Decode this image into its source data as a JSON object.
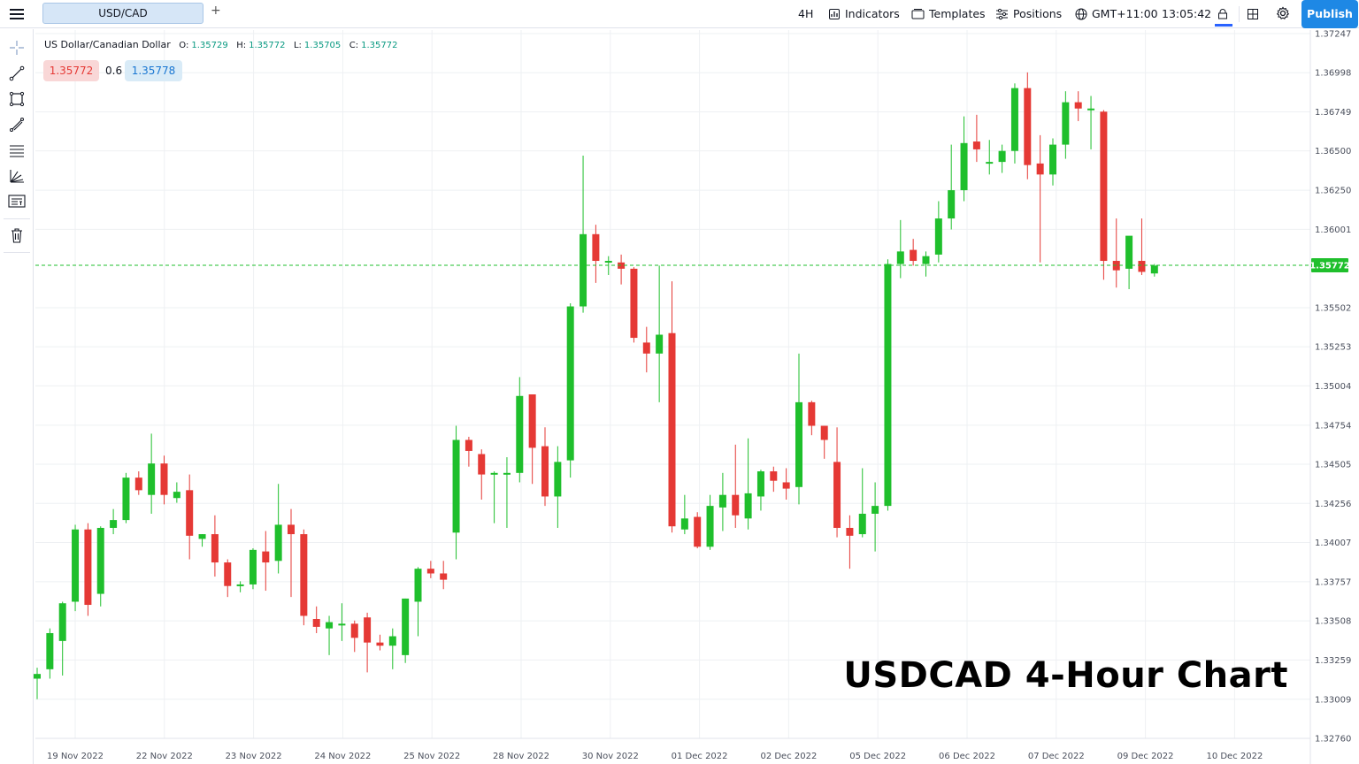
{
  "header": {
    "symbol_tab": "USD/CAD",
    "add_tab": "+",
    "interval": "4H",
    "indicators_label": "Indicators",
    "templates_label": "Templates",
    "positions_label": "Positions",
    "timezone_label": "GMT+11:00",
    "clock": "13:05:42",
    "publish_label": "Publish"
  },
  "toolbar": {
    "tools": [
      "crosshair-icon",
      "trend-line-icon",
      "rectangle-icon",
      "brush-icon",
      "fib-retracement-icon",
      "pitchfork-icon",
      "text-note-icon",
      "trash-icon"
    ]
  },
  "legend": {
    "name": "US Dollar/Canadian Dollar",
    "o_label": "O:",
    "o_value": "1.35729",
    "h_label": "H:",
    "h_value": "1.35772",
    "l_label": "L:",
    "l_value": "1.35705",
    "c_label": "C:",
    "c_value": "1.35772"
  },
  "trade": {
    "sell_price": "1.35772",
    "spread": "0.6",
    "buy_price": "1.35778"
  },
  "overlay_title": "USDCAD 4-Hour Chart",
  "colors": {
    "up": "#1fbf2c",
    "down": "#e53935",
    "grid": "#eef0f3",
    "current_price_bg": "#1fbf2c",
    "accent": "#1e88e5"
  },
  "chart_data": {
    "type": "candlestick",
    "current_price": "1.35772",
    "y_ticks": [
      "1.37247",
      "1.36998",
      "1.36749",
      "1.36500",
      "1.36250",
      "1.36001",
      "1.35502",
      "1.35253",
      "1.35004",
      "1.34754",
      "1.34505",
      "1.34256",
      "1.34007",
      "1.33757",
      "1.33508",
      "1.33259",
      "1.33009",
      "1.32760"
    ],
    "ylim": [
      1.3276,
      1.37247
    ],
    "x_labels": [
      "19 Nov 2022",
      "22 Nov 2022",
      "23 Nov 2022",
      "24 Nov 2022",
      "25 Nov 2022",
      "28 Nov 2022",
      "30 Nov 2022",
      "01 Dec 2022",
      "02 Dec 2022",
      "05 Dec 2022",
      "06 Dec 2022",
      "07 Dec 2022",
      "09 Dec 2022",
      "10 Dec 2022"
    ],
    "grid": true,
    "candles": [
      [
        1.3314,
        1.3321,
        1.3301,
        1.3317
      ],
      [
        1.332,
        1.3346,
        1.3314,
        1.3343
      ],
      [
        1.3338,
        1.3363,
        1.3316,
        1.3362
      ],
      [
        1.3363,
        1.3412,
        1.3357,
        1.3409
      ],
      [
        1.3409,
        1.3413,
        1.3354,
        1.3361
      ],
      [
        1.3368,
        1.3411,
        1.336,
        1.341
      ],
      [
        1.341,
        1.3422,
        1.3406,
        1.3415
      ],
      [
        1.3415,
        1.3445,
        1.3413,
        1.3442
      ],
      [
        1.3442,
        1.3446,
        1.3431,
        1.3434
      ],
      [
        1.3431,
        1.347,
        1.3419,
        1.3451
      ],
      [
        1.3451,
        1.3456,
        1.3425,
        1.3431
      ],
      [
        1.3429,
        1.3439,
        1.3426,
        1.3433
      ],
      [
        1.3434,
        1.3444,
        1.339,
        1.3405
      ],
      [
        1.3403,
        1.3406,
        1.3398,
        1.3406
      ],
      [
        1.3406,
        1.3418,
        1.3379,
        1.3388
      ],
      [
        1.3388,
        1.339,
        1.3366,
        1.3373
      ],
      [
        1.3373,
        1.3376,
        1.3369,
        1.3374
      ],
      [
        1.3374,
        1.3397,
        1.3371,
        1.3396
      ],
      [
        1.3395,
        1.3408,
        1.337,
        1.3388
      ],
      [
        1.3389,
        1.3438,
        1.3381,
        1.3412
      ],
      [
        1.3412,
        1.3422,
        1.3366,
        1.3406
      ],
      [
        1.3406,
        1.3409,
        1.3348,
        1.3354
      ],
      [
        1.3352,
        1.336,
        1.3343,
        1.3347
      ],
      [
        1.3346,
        1.3354,
        1.3329,
        1.335
      ],
      [
        1.3349,
        1.3362,
        1.3338,
        1.3349
      ],
      [
        1.3349,
        1.3351,
        1.3331,
        1.334
      ],
      [
        1.3353,
        1.3356,
        1.3318,
        1.3337
      ],
      [
        1.3337,
        1.3342,
        1.3332,
        1.3335
      ],
      [
        1.3335,
        1.3346,
        1.332,
        1.3341
      ],
      [
        1.3329,
        1.3365,
        1.3324,
        1.3365
      ],
      [
        1.3363,
        1.3385,
        1.3341,
        1.3384
      ],
      [
        1.3384,
        1.3389,
        1.3378,
        1.3381
      ],
      [
        1.3381,
        1.3389,
        1.3371,
        1.3377
      ],
      [
        1.3407,
        1.3475,
        1.339,
        1.3466
      ],
      [
        1.3466,
        1.3468,
        1.3449,
        1.3459
      ],
      [
        1.3457,
        1.346,
        1.3428,
        1.3444
      ],
      [
        1.3445,
        1.3446,
        1.3413,
        1.3445
      ],
      [
        1.3444,
        1.3455,
        1.341,
        1.3445
      ],
      [
        1.3445,
        1.3506,
        1.3439,
        1.3494
      ],
      [
        1.3495,
        1.3495,
        1.3438,
        1.3461
      ],
      [
        1.3462,
        1.3474,
        1.3424,
        1.343
      ],
      [
        1.343,
        1.3462,
        1.341,
        1.3452
      ],
      [
        1.3453,
        1.3553,
        1.3442,
        1.3551
      ],
      [
        1.3551,
        1.3647,
        1.3547,
        1.3597
      ],
      [
        1.3597,
        1.3603,
        1.3566,
        1.358
      ],
      [
        1.3579,
        1.3583,
        1.3571,
        1.358
      ],
      [
        1.3579,
        1.3584,
        1.3565,
        1.3575
      ],
      [
        1.3575,
        1.3576,
        1.3528,
        1.3531
      ],
      [
        1.3528,
        1.3538,
        1.3509,
        1.3521
      ],
      [
        1.3521,
        1.3577,
        1.349,
        1.3533
      ],
      [
        1.3534,
        1.3567,
        1.3407,
        1.3411
      ],
      [
        1.3409,
        1.3431,
        1.3406,
        1.3416
      ],
      [
        1.3417,
        1.342,
        1.3397,
        1.3398
      ],
      [
        1.3398,
        1.3431,
        1.3396,
        1.3424
      ],
      [
        1.3423,
        1.3445,
        1.3408,
        1.3431
      ],
      [
        1.3431,
        1.3463,
        1.341,
        1.3418
      ],
      [
        1.3416,
        1.3467,
        1.3409,
        1.3432
      ],
      [
        1.343,
        1.3447,
        1.3421,
        1.3446
      ],
      [
        1.3446,
        1.3449,
        1.3433,
        1.344
      ],
      [
        1.3439,
        1.3448,
        1.3428,
        1.3435
      ],
      [
        1.3436,
        1.3521,
        1.3425,
        1.349
      ],
      [
        1.349,
        1.3491,
        1.3469,
        1.3475
      ],
      [
        1.3475,
        1.3475,
        1.3454,
        1.3466
      ],
      [
        1.3452,
        1.3474,
        1.3404,
        1.341
      ],
      [
        1.341,
        1.3418,
        1.3384,
        1.3405
      ],
      [
        1.3406,
        1.3448,
        1.3404,
        1.3419
      ],
      [
        1.3419,
        1.3439,
        1.3395,
        1.3424
      ],
      [
        1.3424,
        1.3581,
        1.3421,
        1.3578
      ],
      [
        1.3578,
        1.3606,
        1.3569,
        1.3586
      ],
      [
        1.3587,
        1.3594,
        1.3577,
        1.358
      ],
      [
        1.3578,
        1.3586,
        1.357,
        1.3583
      ],
      [
        1.3584,
        1.3618,
        1.3579,
        1.3607
      ],
      [
        1.3607,
        1.3654,
        1.36,
        1.3625
      ],
      [
        1.3625,
        1.3672,
        1.3618,
        1.3655
      ],
      [
        1.3656,
        1.3673,
        1.3643,
        1.3651
      ],
      [
        1.3643,
        1.3657,
        1.3635,
        1.3643
      ],
      [
        1.3643,
        1.3654,
        1.3636,
        1.365
      ],
      [
        1.365,
        1.3693,
        1.3642,
        1.369
      ],
      [
        1.369,
        1.37,
        1.3632,
        1.3641
      ],
      [
        1.3642,
        1.366,
        1.3579,
        1.3635
      ],
      [
        1.3635,
        1.3658,
        1.3628,
        1.3654
      ],
      [
        1.3654,
        1.3688,
        1.3645,
        1.3681
      ],
      [
        1.3681,
        1.3688,
        1.3669,
        1.3677
      ],
      [
        1.3677,
        1.3685,
        1.3651,
        1.3677
      ],
      [
        1.3675,
        1.3676,
        1.3568,
        1.358
      ],
      [
        1.358,
        1.3607,
        1.3563,
        1.3574
      ],
      [
        1.3575,
        1.3593,
        1.3562,
        1.3596
      ],
      [
        1.358,
        1.3607,
        1.3571,
        1.3573
      ],
      [
        1.3572,
        1.3578,
        1.357,
        1.3577
      ]
    ]
  }
}
